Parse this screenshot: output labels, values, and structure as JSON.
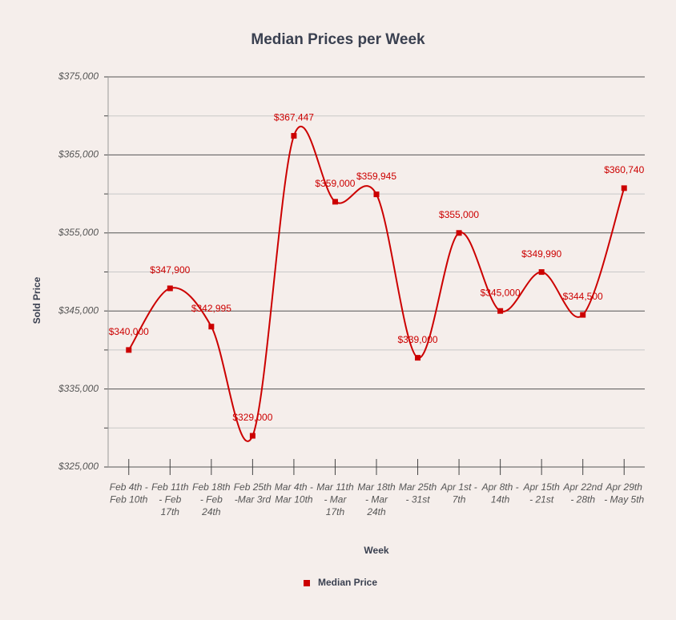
{
  "chart_data": {
    "type": "line",
    "title": "Median Prices per Week",
    "x_label": "Week",
    "y_label": "Sold Price",
    "categories": [
      "Feb 4th - Feb 10th",
      "Feb 11th - Feb 17th",
      "Feb 18th - Feb 24th",
      "Feb 25th -Mar 3rd",
      "Mar 4th - Mar 10th",
      "Mar 11th - Mar 17th",
      "Mar 18th - Mar 24th",
      "Mar 25th - 31st",
      "Apr 1st - 7th",
      "Apr 8th - 14th",
      "Apr 15th - 21st",
      "Apr 22nd - 28th",
      "Apr 29th - May 5th"
    ],
    "series": [
      {
        "name": "Median Price",
        "color": "#cc0000",
        "values": [
          340000,
          347900,
          342995,
          329000,
          367447,
          359000,
          359945,
          339000,
          355000,
          345000,
          349990,
          344500,
          360740
        ],
        "value_labels": [
          "$340,000",
          "$347,900",
          "$342,995",
          "$329,000",
          "$367,447",
          "$359,000",
          "$359,945",
          "$339,000",
          "$355,000",
          "$345,000",
          "$349,990",
          "$344,500",
          "$360,740"
        ]
      }
    ],
    "ylim": [
      325000,
      375000
    ],
    "yticks": [
      {
        "value": 325000,
        "label": "$325,000"
      },
      {
        "value": 335000,
        "label": "$335,000"
      },
      {
        "value": 345000,
        "label": "$345,000"
      },
      {
        "value": 355000,
        "label": "$355,000"
      },
      {
        "value": 365000,
        "label": "$365,000"
      },
      {
        "value": 375000,
        "label": "$375,000"
      }
    ],
    "minor_yticks": [
      330000,
      340000,
      350000,
      360000,
      370000
    ],
    "grid": true,
    "smooth": true,
    "legend": "bottom"
  }
}
